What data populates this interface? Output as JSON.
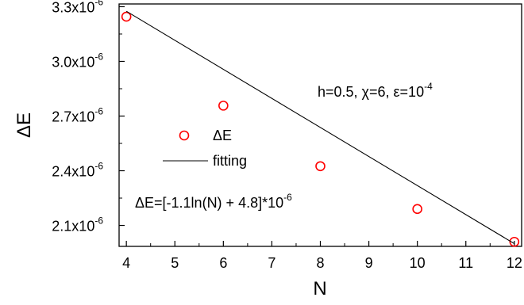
{
  "chart_data": {
    "type": "scatter",
    "xlabel": "N",
    "ylabel": "ΔE",
    "xlim": [
      3.85,
      12.15
    ],
    "ylim": [
      1.985,
      3.315
    ],
    "y_exponent": "-6",
    "x_ticks": [
      4,
      5,
      6,
      7,
      8,
      9,
      10,
      11,
      12
    ],
    "x_tick_labels": [
      "4",
      "5",
      "6",
      "7",
      "8",
      "9",
      "10",
      "11",
      "12"
    ],
    "y_ticks": [
      2.1,
      2.4,
      2.7,
      3.0,
      3.3
    ],
    "y_tick_mantissas": [
      "2.1x10",
      "2.4x10",
      "2.7x10",
      "3.0x10",
      "3.3x10"
    ],
    "grid": false,
    "legend_position": "center-left",
    "series": [
      {
        "name": "ΔE",
        "kind": "markers",
        "marker": "open-circle",
        "color": "#ff0000",
        "x": [
          4,
          6,
          8,
          10,
          12
        ],
        "y": [
          3.245,
          2.757,
          2.425,
          2.19,
          2.01
        ]
      },
      {
        "name": "fitting",
        "kind": "line",
        "color": "#000000",
        "x": [
          4,
          12
        ],
        "y": [
          3.275,
          2.0
        ]
      }
    ],
    "annotations": {
      "params_text": "h=0.5, χ=6, ε=10",
      "params_exponent": "-4",
      "formula_text": "ΔE=[-1.1ln(N) + 4.8]*10",
      "formula_exponent": "-6"
    }
  }
}
